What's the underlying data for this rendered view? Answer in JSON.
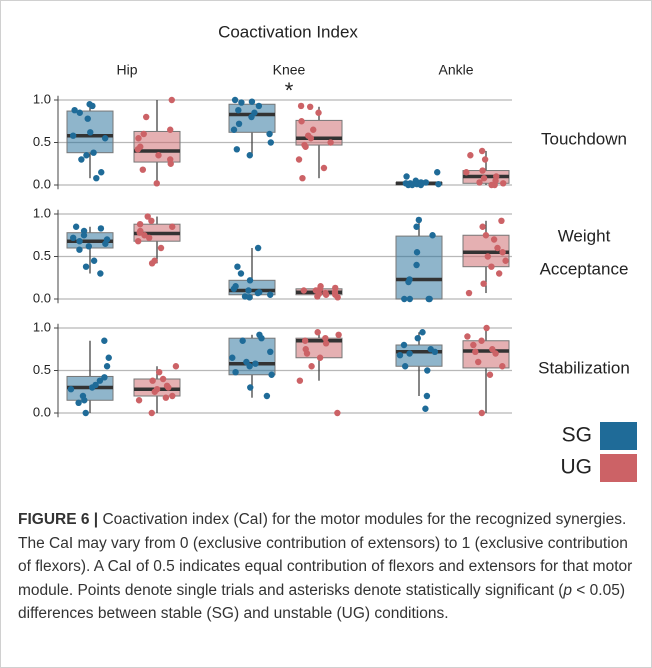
{
  "chart_data": {
    "type": "box",
    "title": "Coactivation Index",
    "columns": [
      "Hip",
      "Knee",
      "Ankle"
    ],
    "rows": [
      [
        "Touchdown"
      ],
      [
        "Weight",
        "Acceptance"
      ],
      [
        "Stabilization"
      ]
    ],
    "annotation": "*",
    "ylim": [
      -0.05,
      1.05
    ],
    "yticks": [
      {
        "value": 0,
        "label": "0.0"
      },
      {
        "value": 0.5,
        "label": "0.5"
      },
      {
        "value": 1,
        "label": "1.0"
      }
    ],
    "grid": true,
    "series": [
      {
        "name": "SG",
        "color": "#1f6b98",
        "values": [
          [
            {
              "whisker_low": 0.08,
              "q1": 0.38,
              "median": 0.58,
              "q3": 0.87,
              "whisker_high": 0.95,
              "points": [
                0.95,
                0.93,
                0.88,
                0.85,
                0.78,
                0.62,
                0.58,
                0.55,
                0.38,
                0.35,
                0.3,
                0.15,
                0.08
              ]
            },
            {
              "whisker_low": 0.35,
              "q1": 0.62,
              "median": 0.83,
              "q3": 0.95,
              "whisker_high": 1.0,
              "points": [
                1.0,
                0.98,
                0.97,
                0.93,
                0.88,
                0.85,
                0.8,
                0.72,
                0.65,
                0.6,
                0.5,
                0.42,
                0.35
              ]
            },
            {
              "whisker_low": 0,
              "q1": 0,
              "median": 0.02,
              "q3": 0.03,
              "whisker_high": 0.06,
              "points": [
                0.15,
                0.1,
                0.05,
                0.03,
                0.03,
                0.02,
                0.02,
                0.01,
                0.01,
                0,
                0,
                0
              ]
            }
          ],
          [
            {
              "whisker_low": 0.3,
              "q1": 0.6,
              "median": 0.68,
              "q3": 0.78,
              "whisker_high": 0.85,
              "points": [
                0.85,
                0.83,
                0.8,
                0.75,
                0.72,
                0.7,
                0.68,
                0.65,
                0.62,
                0.58,
                0.45,
                0.38,
                0.3
              ]
            },
            {
              "whisker_low": 0,
              "q1": 0.05,
              "median": 0.1,
              "q3": 0.22,
              "whisker_high": 0.6,
              "points": [
                0.6,
                0.38,
                0.3,
                0.22,
                0.15,
                0.12,
                0.1,
                0.08,
                0.07,
                0.05,
                0.03,
                0.02
              ]
            },
            {
              "whisker_low": 0,
              "q1": 0,
              "median": 0.23,
              "q3": 0.74,
              "whisker_high": 0.93,
              "points": [
                0.93,
                0.85,
                0.75,
                0.55,
                0.4,
                0.23,
                0.2,
                0,
                0,
                0,
                0
              ]
            }
          ],
          [
            {
              "whisker_low": 0,
              "q1": 0.15,
              "median": 0.3,
              "q3": 0.43,
              "whisker_high": 0.85,
              "points": [
                0.85,
                0.65,
                0.55,
                0.42,
                0.38,
                0.33,
                0.3,
                0.28,
                0.2,
                0.15,
                0.12,
                0
              ]
            },
            {
              "whisker_low": 0.18,
              "q1": 0.45,
              "median": 0.58,
              "q3": 0.88,
              "whisker_high": 0.92,
              "points": [
                0.92,
                0.88,
                0.85,
                0.72,
                0.65,
                0.6,
                0.58,
                0.55,
                0.48,
                0.45,
                0.3,
                0.2
              ]
            },
            {
              "whisker_low": 0.2,
              "q1": 0.55,
              "median": 0.72,
              "q3": 0.8,
              "whisker_high": 0.95,
              "points": [
                0.95,
                0.88,
                0.8,
                0.75,
                0.72,
                0.7,
                0.68,
                0.55,
                0.5,
                0.2,
                0.05
              ]
            }
          ]
        ]
      },
      {
        "name": "UG",
        "color": "#cc6266",
        "values": [
          [
            {
              "whisker_low": 0.02,
              "q1": 0.27,
              "median": 0.4,
              "q3": 0.63,
              "whisker_high": 1.0,
              "points": [
                1.0,
                0.8,
                0.65,
                0.6,
                0.55,
                0.45,
                0.42,
                0.35,
                0.3,
                0.25,
                0.18,
                0.02
              ]
            },
            {
              "whisker_low": 0.08,
              "q1": 0.47,
              "median": 0.55,
              "q3": 0.76,
              "whisker_high": 0.92,
              "points": [
                0.93,
                0.92,
                0.85,
                0.75,
                0.65,
                0.58,
                0.55,
                0.5,
                0.47,
                0.45,
                0.3,
                0.2,
                0.08
              ]
            },
            {
              "whisker_low": 0,
              "q1": 0.02,
              "median": 0.1,
              "q3": 0.17,
              "whisker_high": 0.4,
              "points": [
                0.4,
                0.35,
                0.3,
                0.17,
                0.15,
                0.1,
                0.08,
                0.05,
                0.03,
                0.02,
                0,
                0
              ]
            }
          ],
          [
            {
              "whisker_low": 0.42,
              "q1": 0.68,
              "median": 0.77,
              "q3": 0.88,
              "whisker_high": 0.97,
              "points": [
                0.97,
                0.92,
                0.88,
                0.85,
                0.8,
                0.78,
                0.75,
                0.72,
                0.68,
                0.6,
                0.45,
                0.42
              ]
            },
            {
              "whisker_low": 0,
              "q1": 0.05,
              "median": 0.08,
              "q3": 0.12,
              "whisker_high": 0.15,
              "points": [
                0.15,
                0.13,
                0.12,
                0.1,
                0.1,
                0.08,
                0.07,
                0.06,
                0.05,
                0.05,
                0.03,
                0.02
              ]
            },
            {
              "whisker_low": 0.07,
              "q1": 0.38,
              "median": 0.55,
              "q3": 0.75,
              "whisker_high": 0.92,
              "points": [
                0.92,
                0.85,
                0.75,
                0.7,
                0.6,
                0.55,
                0.5,
                0.45,
                0.38,
                0.3,
                0.18,
                0.07
              ]
            }
          ],
          [
            {
              "whisker_low": 0,
              "q1": 0.2,
              "median": 0.28,
              "q3": 0.4,
              "whisker_high": 0.55,
              "points": [
                0.55,
                0.48,
                0.4,
                0.38,
                0.32,
                0.3,
                0.28,
                0.25,
                0.2,
                0.18,
                0.15,
                0
              ]
            },
            {
              "whisker_low": 0.38,
              "q1": 0.65,
              "median": 0.85,
              "q3": 0.88,
              "whisker_high": 0.95,
              "points": [
                0.95,
                0.92,
                0.88,
                0.85,
                0.82,
                0.75,
                0.7,
                0.65,
                0.55,
                0.38,
                0
              ]
            },
            {
              "whisker_low": 0,
              "q1": 0.53,
              "median": 0.73,
              "q3": 0.85,
              "whisker_high": 1.0,
              "points": [
                1.0,
                0.9,
                0.85,
                0.8,
                0.75,
                0.72,
                0.7,
                0.6,
                0.55,
                0.45,
                0
              ]
            }
          ]
        ]
      }
    ]
  },
  "caption": {
    "label": "FIGURE 6 |",
    "text": [
      "Coactivation index (CaI) for the motor modules for the recognized synergies. The CaI may vary from 0 (exclusive contribution of extensors) to 1 (exclusive contribution of flexors). A CaI of 0.5 indicates equal contribution of flexors and extensors for that motor module. Points denote single trials and asterisks denote statistically significant (",
      "p",
      " < 0.05) differences between stable (SG) and unstable (UG) conditions."
    ]
  }
}
